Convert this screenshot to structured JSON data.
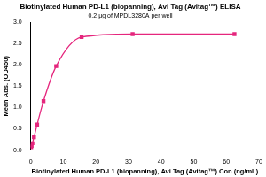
{
  "chart_data": {
    "type": "scatter",
    "title": "Biotinylated Human PD-L1 (biopanning), Avi Tag (Avitag™) ELISA",
    "subtitle": "0.2 μg of MPDL3280A per well",
    "x_label": "Biotinylated Human PD-L1 (biopanning), Avi Tag (Avitag™) Con.(ng/mL)",
    "y_label": "Mean Abs. (OD450)",
    "x": [
      0.12,
      0.24,
      0.49,
      0.98,
      1.95,
      3.9,
      7.8,
      15.6,
      31.25,
      62.5
    ],
    "values": [
      0.07,
      0.1,
      0.16,
      0.3,
      0.6,
      1.15,
      1.97,
      2.65,
      2.72,
      2.72
    ],
    "color": "#e5267d",
    "marker": "square",
    "line_style": "solid",
    "xlim": [
      0,
      70
    ],
    "xticks": [
      0,
      10,
      20,
      30,
      40,
      50,
      60,
      70
    ],
    "ylim": [
      0,
      3
    ],
    "yticks": [
      {
        "value": 0,
        "label": "0.0"
      },
      0.5,
      {
        "value": 1,
        "label": "1.0"
      },
      1.5,
      {
        "value": 2,
        "label": "2.0"
      },
      2.5,
      {
        "value": 3,
        "label": "3.0"
      }
    ],
    "grid": false
  }
}
